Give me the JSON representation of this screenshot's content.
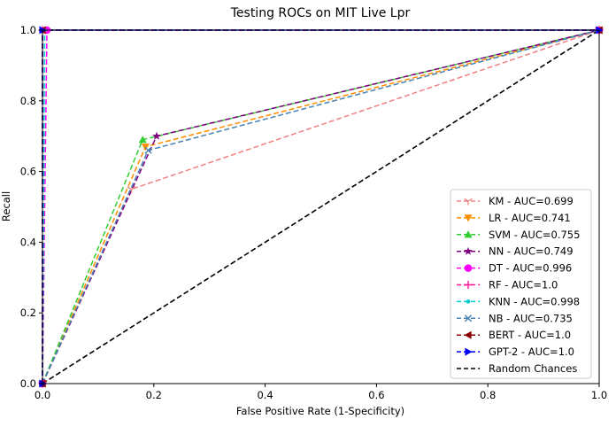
{
  "chart_data": {
    "type": "line",
    "title": "Testing ROCs on MIT Live Lpr",
    "xlabel": "False Positive Rate (1-Specificity)",
    "ylabel": "Recall",
    "xlim": [
      0.0,
      1.0
    ],
    "ylim": [
      0.0,
      1.0
    ],
    "xticks": [
      0.0,
      0.2,
      0.4,
      0.6,
      0.8,
      1.0
    ],
    "yticks": [
      0.0,
      0.2,
      0.4,
      0.6,
      0.8,
      1.0
    ],
    "xtick_labels": [
      "0.0",
      "0.2",
      "0.4",
      "0.6",
      "0.8",
      "1.0"
    ],
    "ytick_labels": [
      "0.0",
      "0.2",
      "0.4",
      "0.6",
      "0.8",
      "1.0"
    ],
    "grid": false,
    "legend_position": "lower-right",
    "series": [
      {
        "name": "KM - AUC=0.699",
        "color": "#f08080",
        "marker": "tri-down",
        "x": [
          0,
          0.16,
          1.0
        ],
        "y": [
          0,
          0.55,
          1.0
        ]
      },
      {
        "name": "LR - AUC=0.741",
        "color": "#ff8c00",
        "marker": "triangle-down",
        "x": [
          0,
          0.185,
          1.0
        ],
        "y": [
          0,
          0.67,
          1.0
        ]
      },
      {
        "name": "SVM - AUC=0.755",
        "color": "#32cd32",
        "marker": "triangle-up",
        "x": [
          0,
          0.18,
          1.0
        ],
        "y": [
          0,
          0.69,
          1.0
        ]
      },
      {
        "name": "NN - AUC=0.749",
        "color": "#800080",
        "marker": "star",
        "x": [
          0,
          0.205,
          1.0
        ],
        "y": [
          0,
          0.7,
          1.0
        ]
      },
      {
        "name": "DT - AUC=0.996",
        "color": "#ff00ff",
        "marker": "circle",
        "x": [
          0,
          0.008,
          1.0
        ],
        "y": [
          0,
          1.0,
          1.0
        ]
      },
      {
        "name": "RF - AUC=1.0",
        "color": "#ff1493",
        "marker": "plus",
        "x": [
          0,
          0.0,
          1.0
        ],
        "y": [
          0,
          1.0,
          1.0
        ]
      },
      {
        "name": "KNN - AUC=0.998",
        "color": "#00ced1",
        "marker": "point",
        "x": [
          0,
          0.004,
          1.0
        ],
        "y": [
          0,
          1.0,
          1.0
        ]
      },
      {
        "name": "NB - AUC=0.735",
        "color": "#4682b4",
        "marker": "x",
        "x": [
          0,
          0.19,
          1.0
        ],
        "y": [
          0,
          0.66,
          1.0
        ]
      },
      {
        "name": "BERT - AUC=1.0",
        "color": "#8b0000",
        "marker": "triangle-left",
        "x": [
          0,
          0.0,
          1.0
        ],
        "y": [
          0,
          1.0,
          1.0
        ]
      },
      {
        "name": "GPT-2 - AUC=1.0",
        "color": "#0000ff",
        "marker": "triangle-right",
        "x": [
          0,
          0.0,
          1.0
        ],
        "y": [
          0,
          1.0,
          1.0
        ]
      },
      {
        "name": "Random Chances",
        "color": "#000000",
        "marker": "none",
        "x": [
          0,
          1.0
        ],
        "y": [
          0,
          1.0
        ]
      }
    ]
  }
}
